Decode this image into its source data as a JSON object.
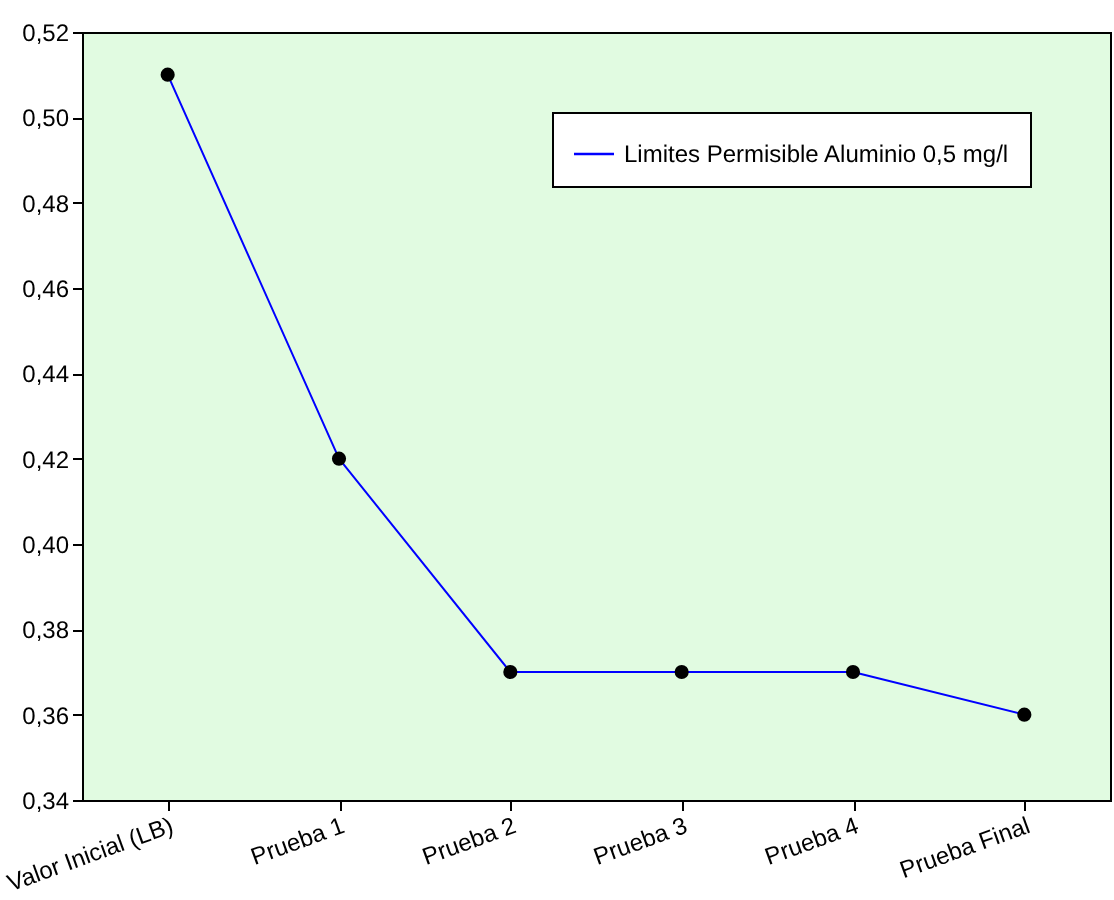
{
  "chart_data": {
    "type": "line",
    "categories": [
      "Valor Inicial (LB)",
      "Prueba 1",
      "Prueba 2",
      "Prueba 3",
      "Prueba 4",
      "Prueba Final"
    ],
    "series": [
      {
        "name": "Limites Permisible Aluminio 0,5 mg/l",
        "color": "#0000ff",
        "values": [
          0.51,
          0.42,
          0.37,
          0.37,
          0.37,
          0.36
        ]
      }
    ],
    "ylim": [
      0.34,
      0.52
    ],
    "yticks": [
      {
        "value": 0.34,
        "label": "0,34"
      },
      {
        "value": 0.36,
        "label": "0,36"
      },
      {
        "value": 0.38,
        "label": "0,38"
      },
      {
        "value": 0.4,
        "label": "0,40"
      },
      {
        "value": 0.42,
        "label": "0,42"
      },
      {
        "value": 0.44,
        "label": "0,44"
      },
      {
        "value": 0.46,
        "label": "0,46"
      },
      {
        "value": 0.48,
        "label": "0,48"
      },
      {
        "value": 0.5,
        "label": "0,50"
      },
      {
        "value": 0.52,
        "label": "0,52"
      }
    ],
    "grid": false,
    "legend": "top right",
    "marker": "circle",
    "line_style": "solid"
  }
}
